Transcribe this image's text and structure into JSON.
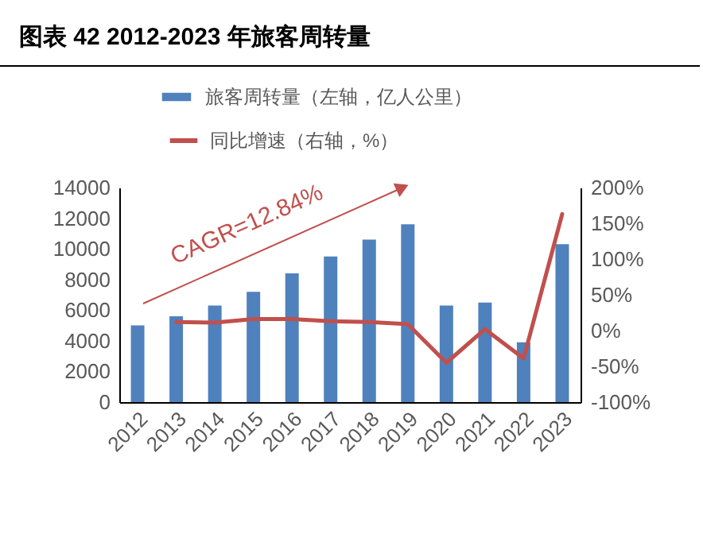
{
  "chart_data": {
    "type": "bar",
    "title": "图表 42 2012-2023 年旅客周转量",
    "categories": [
      "2012",
      "2013",
      "2014",
      "2015",
      "2016",
      "2017",
      "2018",
      "2019",
      "2020",
      "2021",
      "2022",
      "2023"
    ],
    "series": [
      {
        "name": "旅客周转量（左轴，亿人公里）",
        "color": "#4f81bd",
        "values": [
          5000,
          5600,
          6300,
          7200,
          8400,
          9500,
          10600,
          11600,
          6300,
          6500,
          3900,
          10300
        ]
      },
      {
        "name": "同比增速（右轴，%）",
        "type": "line",
        "axis": "y2",
        "color": "#c0504d",
        "values": [
          null,
          12,
          11,
          16,
          16,
          13,
          12,
          9,
          -45,
          2,
          -39,
          163
        ]
      }
    ],
    "ylim": [
      0,
      14000
    ],
    "yticks": [
      0,
      2000,
      4000,
      6000,
      8000,
      10000,
      12000,
      14000
    ],
    "y2lim": [
      -100,
      200
    ],
    "y2ticks": [
      {
        "value": -100,
        "label": "-100%"
      },
      {
        "value": -50,
        "label": "-50%"
      },
      {
        "value": 0,
        "label": "0%"
      },
      {
        "value": 50,
        "label": "50%"
      },
      {
        "value": 100,
        "label": "100%"
      },
      {
        "value": 150,
        "label": "150%"
      },
      {
        "value": 200,
        "label": "200%"
      }
    ],
    "legend": "top",
    "annotations": [
      "CAGR=12.84%"
    ]
  }
}
